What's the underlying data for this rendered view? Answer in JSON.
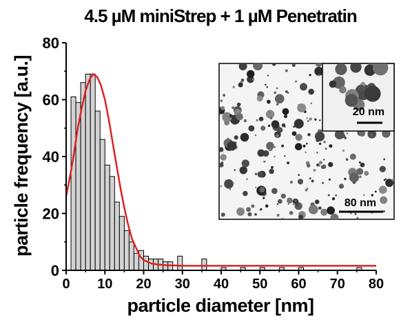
{
  "chart_data": {
    "type": "bar",
    "title": "4.5 µM miniStrep + 1 µM Penetratin",
    "xlabel": "particle diameter [nm]",
    "ylabel": "particle frequency [a.u.]",
    "xlim": [
      0,
      80
    ],
    "ylim": [
      0,
      80
    ],
    "xticks": [
      "0",
      "10",
      "20",
      "30",
      "40",
      "50",
      "60",
      "70",
      "80"
    ],
    "yticks": [
      "0",
      "20",
      "40",
      "60",
      "80"
    ],
    "bin_width": 1.25,
    "histogram": {
      "bin_start": [
        1.25,
        2.5,
        3.75,
        5,
        6.25,
        7.5,
        8.75,
        10,
        11.25,
        12.5,
        13.75,
        15,
        16.25,
        17.5,
        18.75,
        20,
        21.25,
        22.5,
        23.75,
        25,
        26.25,
        28.75,
        35,
        40,
        45,
        50,
        55,
        60,
        75
      ],
      "values": [
        61,
        59,
        66,
        69,
        69,
        56,
        46,
        37,
        33,
        24,
        19,
        14,
        10,
        6,
        7,
        5,
        4,
        4,
        4,
        3,
        3,
        5,
        4,
        1,
        1,
        1,
        1,
        1,
        1
      ]
    },
    "fit_curve": {
      "name": "",
      "color": "#e02020",
      "x": [
        0,
        1,
        2,
        3,
        4,
        5,
        6,
        7,
        8,
        9,
        10,
        11,
        12,
        13,
        14,
        15,
        16,
        17,
        18,
        19,
        20,
        22,
        24,
        26,
        28,
        30,
        35,
        40,
        50,
        60,
        70,
        80
      ],
      "y": [
        26,
        33,
        41,
        50,
        57,
        63,
        67,
        69,
        68,
        65,
        60,
        53,
        45,
        37,
        29,
        22,
        16,
        11,
        8,
        5,
        3.6,
        2.4,
        2.0,
        1.8,
        1.7,
        1.6,
        1.6,
        1.6,
        1.6,
        1.6,
        1.6,
        1.6
      ]
    },
    "bar_color": "#d3d3d3",
    "grid": false,
    "legend": "none",
    "inset": {
      "type": "micrograph",
      "scale_bar_main": "80 nm",
      "scale_bar_zoom": "20 nm"
    }
  }
}
